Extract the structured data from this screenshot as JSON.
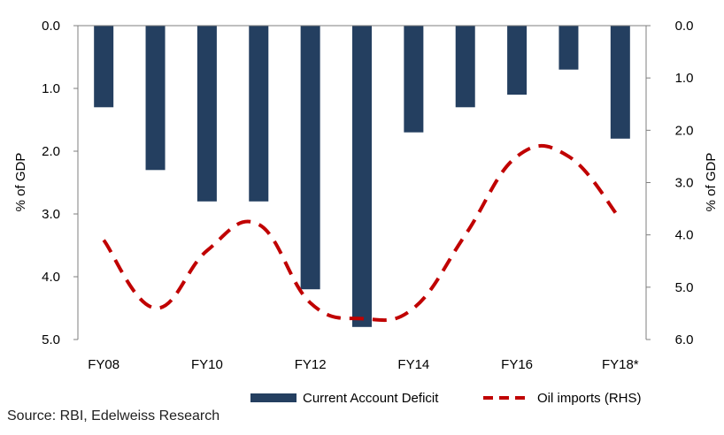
{
  "chart_data": {
    "type": "bar",
    "categories": [
      "FY08",
      "FY09",
      "FY10",
      "FY11",
      "FY12",
      "FY13",
      "FY14",
      "FY15",
      "FY16",
      "FY17",
      "FY18*"
    ],
    "x_tick_labels": [
      "FY08",
      "",
      "FY10",
      "",
      "FY12",
      "",
      "FY14",
      "",
      "FY16",
      "",
      "FY18*"
    ],
    "series": [
      {
        "name": "Current Account Deficit",
        "type": "bar",
        "axis": "left",
        "color": "#243f60",
        "values": [
          1.3,
          2.3,
          2.8,
          2.8,
          4.2,
          4.8,
          1.7,
          1.3,
          1.1,
          0.7,
          1.8
        ]
      },
      {
        "name": "Oil imports (RHS)",
        "type": "line",
        "style": "dashed",
        "axis": "right",
        "color": "#c00000",
        "values": [
          4.1,
          5.4,
          4.3,
          3.8,
          5.3,
          5.6,
          5.4,
          4.0,
          2.5,
          2.5,
          3.7
        ]
      }
    ],
    "ylabel_left": "% of GDP",
    "ylabel_right": "% of GDP",
    "ylim_left": [
      0,
      5
    ],
    "ylim_right": [
      0,
      6
    ],
    "y_inverted": true,
    "yticks_left": [
      "0.0",
      "1.0",
      "2.0",
      "3.0",
      "4.0",
      "5.0"
    ],
    "yticks_right": [
      "0.0",
      "1.0",
      "2.0",
      "3.0",
      "4.0",
      "5.0",
      "6.0"
    ],
    "grid": false,
    "legend_position": "bottom-right"
  },
  "source_text": "Source: RBI, Edelweiss Research"
}
